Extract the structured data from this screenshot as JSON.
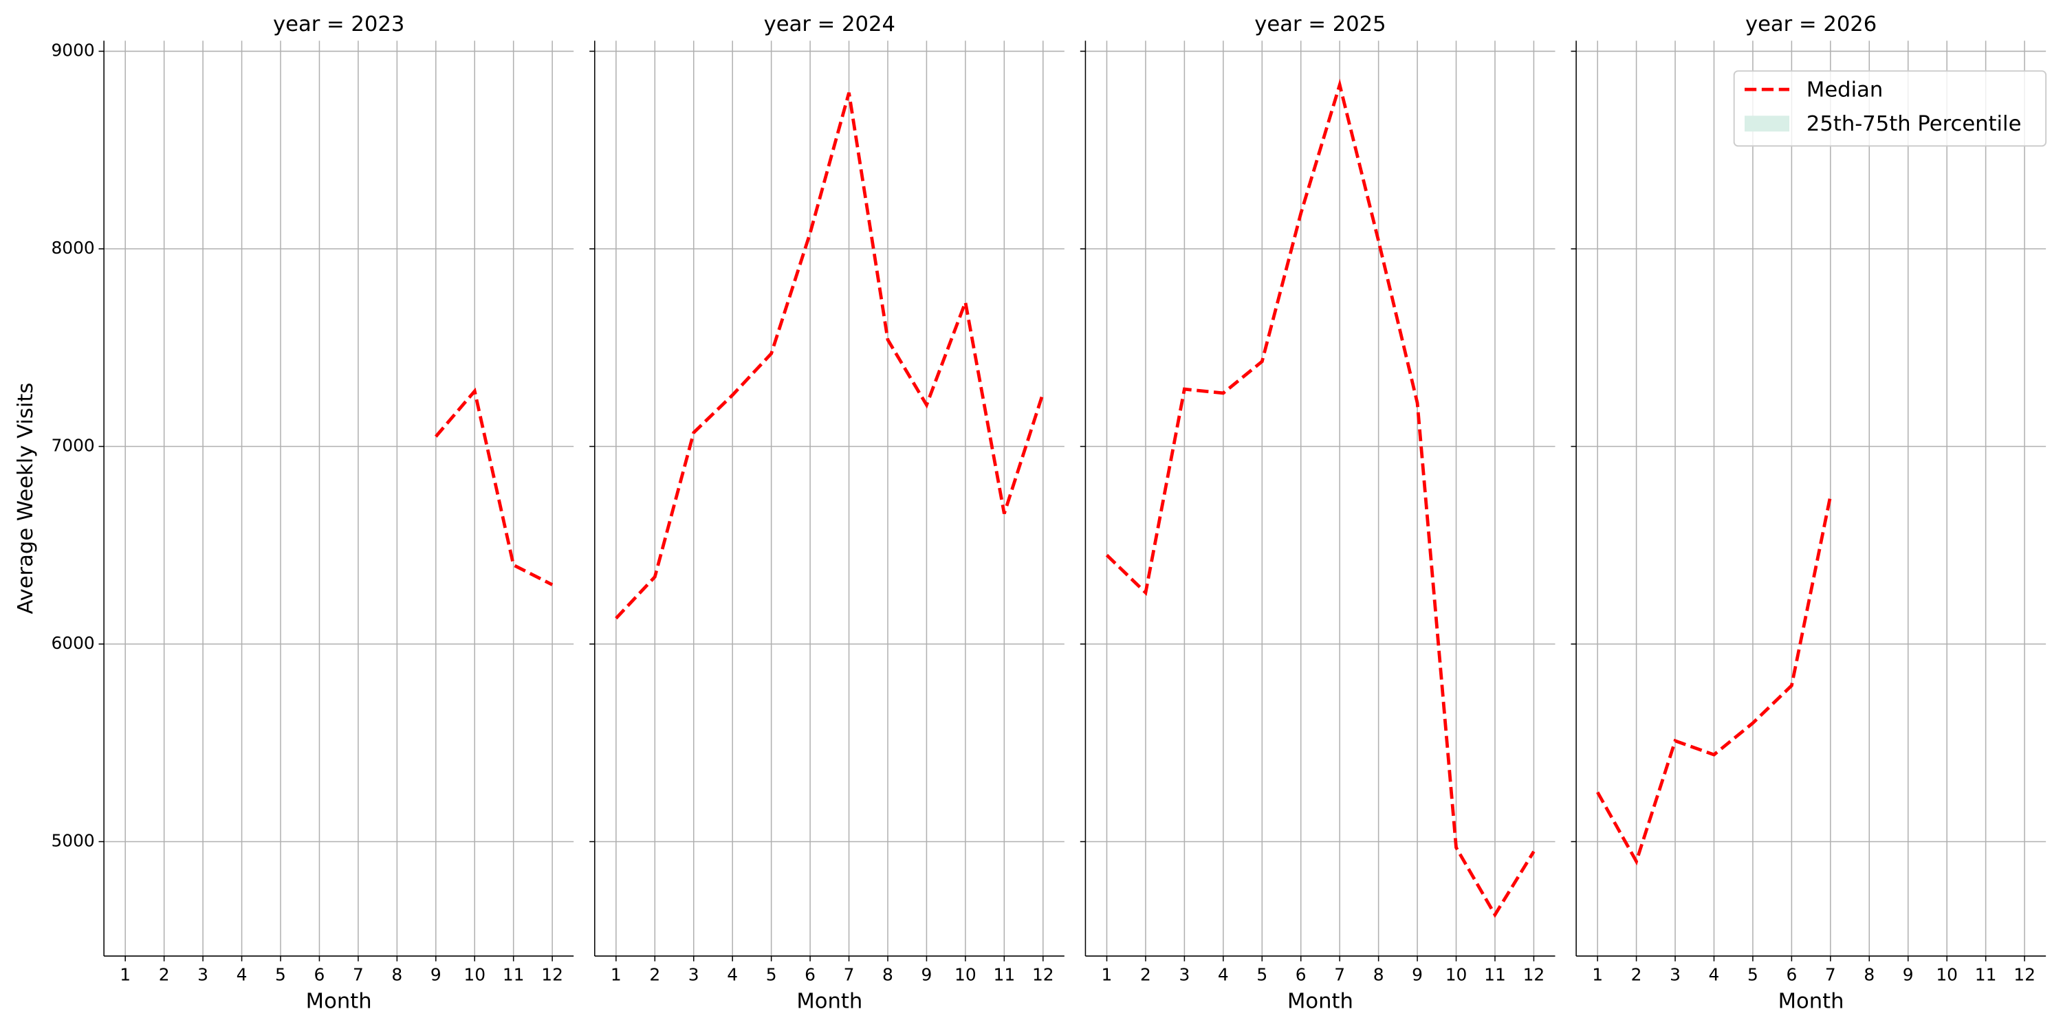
{
  "chart_data": [
    {
      "type": "line",
      "title": "year = 2023",
      "xlabel": "Month",
      "ylabel": "Average Weekly Visits",
      "x": [
        1,
        2,
        3,
        4,
        5,
        6,
        7,
        8,
        9,
        10,
        11,
        12
      ],
      "xticks": [
        1,
        2,
        3,
        4,
        5,
        6,
        7,
        8,
        9,
        10,
        11,
        12
      ],
      "xlim": [
        0.45,
        12.55
      ],
      "ylim": [
        4421,
        9053
      ],
      "yticks": [
        5000,
        6000,
        7000,
        8000,
        9000
      ],
      "grid": true,
      "series": [
        {
          "name": "Median",
          "color": "#ff0000",
          "values": [
            null,
            null,
            null,
            null,
            null,
            null,
            null,
            null,
            7050,
            7280,
            6400,
            6300
          ]
        }
      ]
    },
    {
      "type": "line",
      "title": "year = 2024",
      "xlabel": "Month",
      "x": [
        1,
        2,
        3,
        4,
        5,
        6,
        7,
        8,
        9,
        10,
        11,
        12
      ],
      "xticks": [
        1,
        2,
        3,
        4,
        5,
        6,
        7,
        8,
        9,
        10,
        11,
        12
      ],
      "xlim": [
        0.45,
        12.55
      ],
      "grid": true,
      "series": [
        {
          "name": "Median",
          "color": "#ff0000",
          "values": [
            6130,
            6340,
            7070,
            7260,
            7470,
            8080,
            8790,
            7540,
            7210,
            7730,
            6660,
            7270
          ]
        }
      ]
    },
    {
      "type": "line",
      "title": "year = 2025",
      "xlabel": "Month",
      "x": [
        1,
        2,
        3,
        4,
        5,
        6,
        7,
        8,
        9,
        10,
        11,
        12
      ],
      "xticks": [
        1,
        2,
        3,
        4,
        5,
        6,
        7,
        8,
        9,
        10,
        11,
        12
      ],
      "xlim": [
        0.45,
        12.55
      ],
      "grid": true,
      "series": [
        {
          "name": "Median",
          "color": "#ff0000",
          "values": [
            6450,
            6260,
            7290,
            7270,
            7430,
            8180,
            8830,
            8040,
            7220,
            4970,
            4630,
            4950
          ]
        }
      ]
    },
    {
      "type": "line",
      "title": "year = 2026",
      "xlabel": "Month",
      "x": [
        1,
        2,
        3,
        4,
        5,
        6,
        7,
        8,
        9,
        10,
        11,
        12
      ],
      "xticks": [
        1,
        2,
        3,
        4,
        5,
        6,
        7,
        8,
        9,
        10,
        11,
        12
      ],
      "xlim": [
        0.45,
        12.55
      ],
      "grid": true,
      "series": [
        {
          "name": "Median",
          "color": "#ff0000",
          "values": [
            5250,
            4900,
            5510,
            5440,
            5600,
            5790,
            6750,
            null,
            null,
            null,
            null,
            null
          ]
        }
      ],
      "legend": {
        "loc": "upper right",
        "band": {
          "name": "25th-75th Percentile",
          "color": "#d9efe7"
        }
      }
    }
  ]
}
